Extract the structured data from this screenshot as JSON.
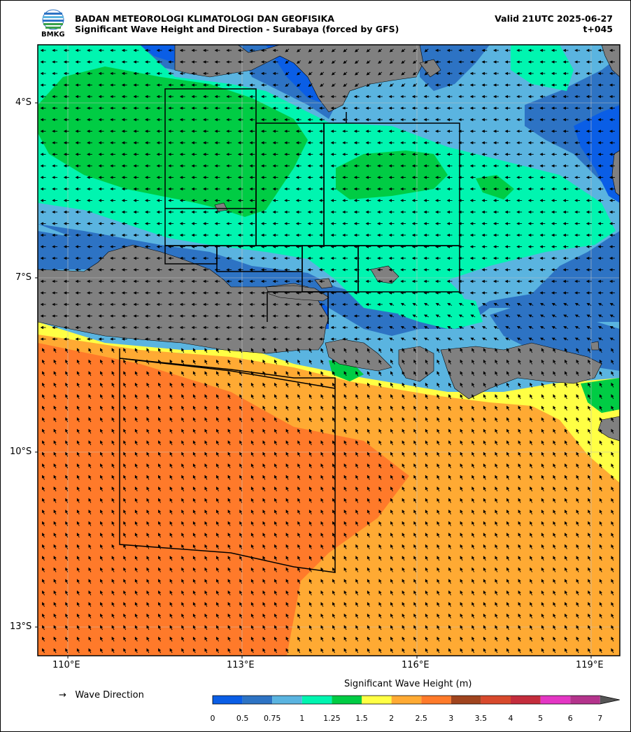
{
  "header": {
    "agency": "BADAN METEOROLOGI KLIMATOLOGI DAN GEOFISIKA",
    "subtitle": "Significant Wave Height and Direction - Surabaya (forced by GFS)",
    "valid": "Valid 21UTC 2025-06-27",
    "lead": "t+045",
    "logo_text": "BMKG"
  },
  "axes": {
    "lat_labels": [
      "4°S",
      "7°S",
      "10°S",
      "13°S"
    ],
    "lon_labels": [
      "110°E",
      "113°E",
      "116°E",
      "119°E"
    ]
  },
  "legend": {
    "arrow_glyph": "→",
    "wave_direction": "Wave Direction",
    "colorbar_title": "Significant Wave Height (m)",
    "ticks": [
      "0",
      "0.5",
      "0.75",
      "1",
      "1.25",
      "1.5",
      "2",
      "2.5",
      "3",
      "3.5",
      "4",
      "5",
      "6",
      "7"
    ],
    "colors": [
      "#0a5ee6",
      "#2d73c4",
      "#5ab4e0",
      "#00f5b0",
      "#00cc44",
      "#ffff44",
      "#ffaa33",
      "#ff7a2a",
      "#a0441e",
      "#d8492c",
      "#c42c3c",
      "#e436c4",
      "#b4338c",
      "#555555"
    ]
  },
  "colors": {
    "land": "#808080",
    "grid": "#c0c0c0"
  }
}
